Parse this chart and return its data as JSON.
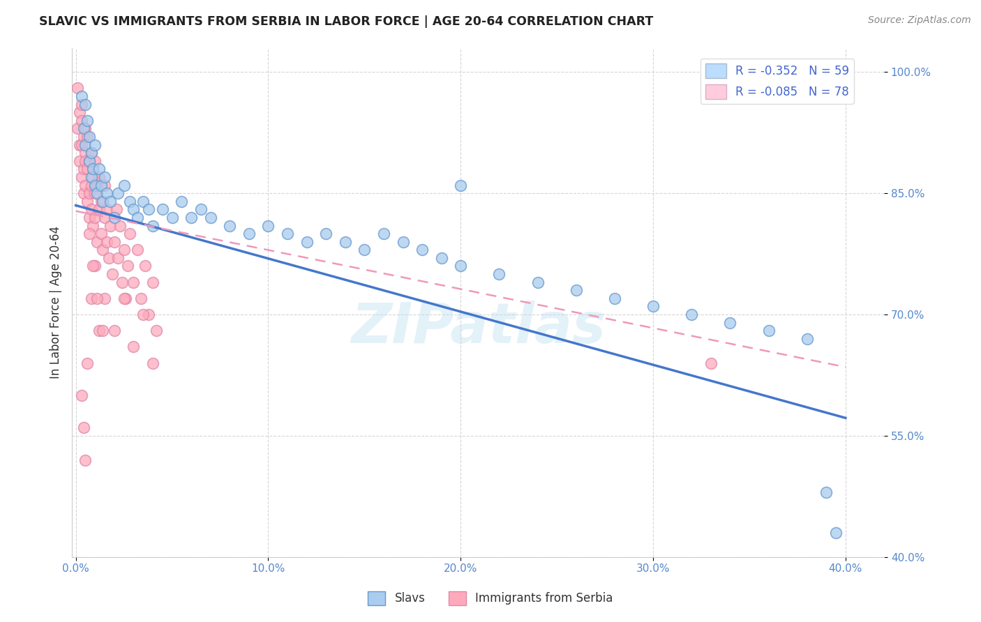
{
  "title": "SLAVIC VS IMMIGRANTS FROM SERBIA IN LABOR FORCE | AGE 20-64 CORRELATION CHART",
  "source": "Source: ZipAtlas.com",
  "ylabel": "In Labor Force | Age 20-64",
  "xlim": [
    -0.002,
    0.42
  ],
  "ylim": [
    0.4,
    1.03
  ],
  "xticks": [
    0.0,
    0.1,
    0.2,
    0.3,
    0.4
  ],
  "yticks": [
    1.0,
    0.85,
    0.7,
    0.55,
    0.4
  ],
  "xticklabels": [
    "0.0%",
    "10.0%",
    "20.0%",
    "30.0%",
    "40.0%"
  ],
  "yticklabels": [
    "100.0%",
    "85.0%",
    "70.0%",
    "55.0%",
    "40.0%"
  ],
  "slavs_color": "#aaccee",
  "slavs_edge_color": "#6699cc",
  "serbia_color": "#ffaabb",
  "serbia_edge_color": "#dd88aa",
  "slavs_R": -0.352,
  "slavs_N": 59,
  "serbia_R": -0.085,
  "serbia_N": 78,
  "slavs_line_color": "#4477cc",
  "serbia_line_color": "#ee99bb",
  "watermark": "ZIPatlas",
  "watermark_color": "#bbddee",
  "legend_box_color_slavs": "#bbddff",
  "legend_box_color_serbia": "#ffccdd",
  "slavs_x": [
    0.003,
    0.004,
    0.005,
    0.005,
    0.006,
    0.007,
    0.007,
    0.008,
    0.008,
    0.009,
    0.01,
    0.01,
    0.011,
    0.012,
    0.013,
    0.014,
    0.015,
    0.016,
    0.018,
    0.02,
    0.022,
    0.025,
    0.028,
    0.03,
    0.032,
    0.035,
    0.038,
    0.04,
    0.045,
    0.05,
    0.055,
    0.06,
    0.065,
    0.07,
    0.08,
    0.09,
    0.1,
    0.11,
    0.12,
    0.13,
    0.14,
    0.15,
    0.16,
    0.17,
    0.18,
    0.19,
    0.2,
    0.22,
    0.24,
    0.26,
    0.28,
    0.3,
    0.32,
    0.34,
    0.36,
    0.38,
    0.39,
    0.395,
    0.2
  ],
  "slavs_y": [
    0.97,
    0.93,
    0.91,
    0.96,
    0.94,
    0.89,
    0.92,
    0.87,
    0.9,
    0.88,
    0.86,
    0.91,
    0.85,
    0.88,
    0.86,
    0.84,
    0.87,
    0.85,
    0.84,
    0.82,
    0.85,
    0.86,
    0.84,
    0.83,
    0.82,
    0.84,
    0.83,
    0.81,
    0.83,
    0.82,
    0.84,
    0.82,
    0.83,
    0.82,
    0.81,
    0.8,
    0.81,
    0.8,
    0.79,
    0.8,
    0.79,
    0.78,
    0.8,
    0.79,
    0.78,
    0.77,
    0.76,
    0.75,
    0.74,
    0.73,
    0.72,
    0.71,
    0.7,
    0.69,
    0.68,
    0.67,
    0.48,
    0.43,
    0.86
  ],
  "serbia_x": [
    0.001,
    0.001,
    0.002,
    0.002,
    0.002,
    0.003,
    0.003,
    0.003,
    0.003,
    0.004,
    0.004,
    0.004,
    0.005,
    0.005,
    0.005,
    0.005,
    0.006,
    0.006,
    0.006,
    0.007,
    0.007,
    0.007,
    0.008,
    0.008,
    0.008,
    0.009,
    0.009,
    0.01,
    0.01,
    0.01,
    0.011,
    0.011,
    0.012,
    0.012,
    0.013,
    0.013,
    0.014,
    0.015,
    0.015,
    0.016,
    0.016,
    0.017,
    0.018,
    0.019,
    0.02,
    0.021,
    0.022,
    0.023,
    0.024,
    0.025,
    0.026,
    0.027,
    0.028,
    0.03,
    0.032,
    0.034,
    0.036,
    0.038,
    0.04,
    0.042,
    0.015,
    0.02,
    0.025,
    0.03,
    0.035,
    0.04,
    0.01,
    0.008,
    0.012,
    0.006,
    0.003,
    0.004,
    0.005,
    0.007,
    0.009,
    0.011,
    0.014,
    0.33
  ],
  "serbia_y": [
    0.93,
    0.98,
    0.91,
    0.95,
    0.89,
    0.94,
    0.87,
    0.91,
    0.96,
    0.88,
    0.92,
    0.85,
    0.9,
    0.86,
    0.93,
    0.89,
    0.84,
    0.88,
    0.92,
    0.85,
    0.89,
    0.82,
    0.86,
    0.9,
    0.83,
    0.87,
    0.81,
    0.85,
    0.89,
    0.82,
    0.86,
    0.79,
    0.83,
    0.87,
    0.8,
    0.84,
    0.78,
    0.82,
    0.86,
    0.79,
    0.83,
    0.77,
    0.81,
    0.75,
    0.79,
    0.83,
    0.77,
    0.81,
    0.74,
    0.78,
    0.72,
    0.76,
    0.8,
    0.74,
    0.78,
    0.72,
    0.76,
    0.7,
    0.74,
    0.68,
    0.72,
    0.68,
    0.72,
    0.66,
    0.7,
    0.64,
    0.76,
    0.72,
    0.68,
    0.64,
    0.6,
    0.56,
    0.52,
    0.8,
    0.76,
    0.72,
    0.68,
    0.64
  ],
  "slavs_line_x0": 0.0,
  "slavs_line_y0": 0.835,
  "slavs_line_x1": 0.4,
  "slavs_line_y1": 0.572,
  "serbia_line_x0": 0.0,
  "serbia_line_y0": 0.828,
  "serbia_line_x1": 0.4,
  "serbia_line_y1": 0.635
}
